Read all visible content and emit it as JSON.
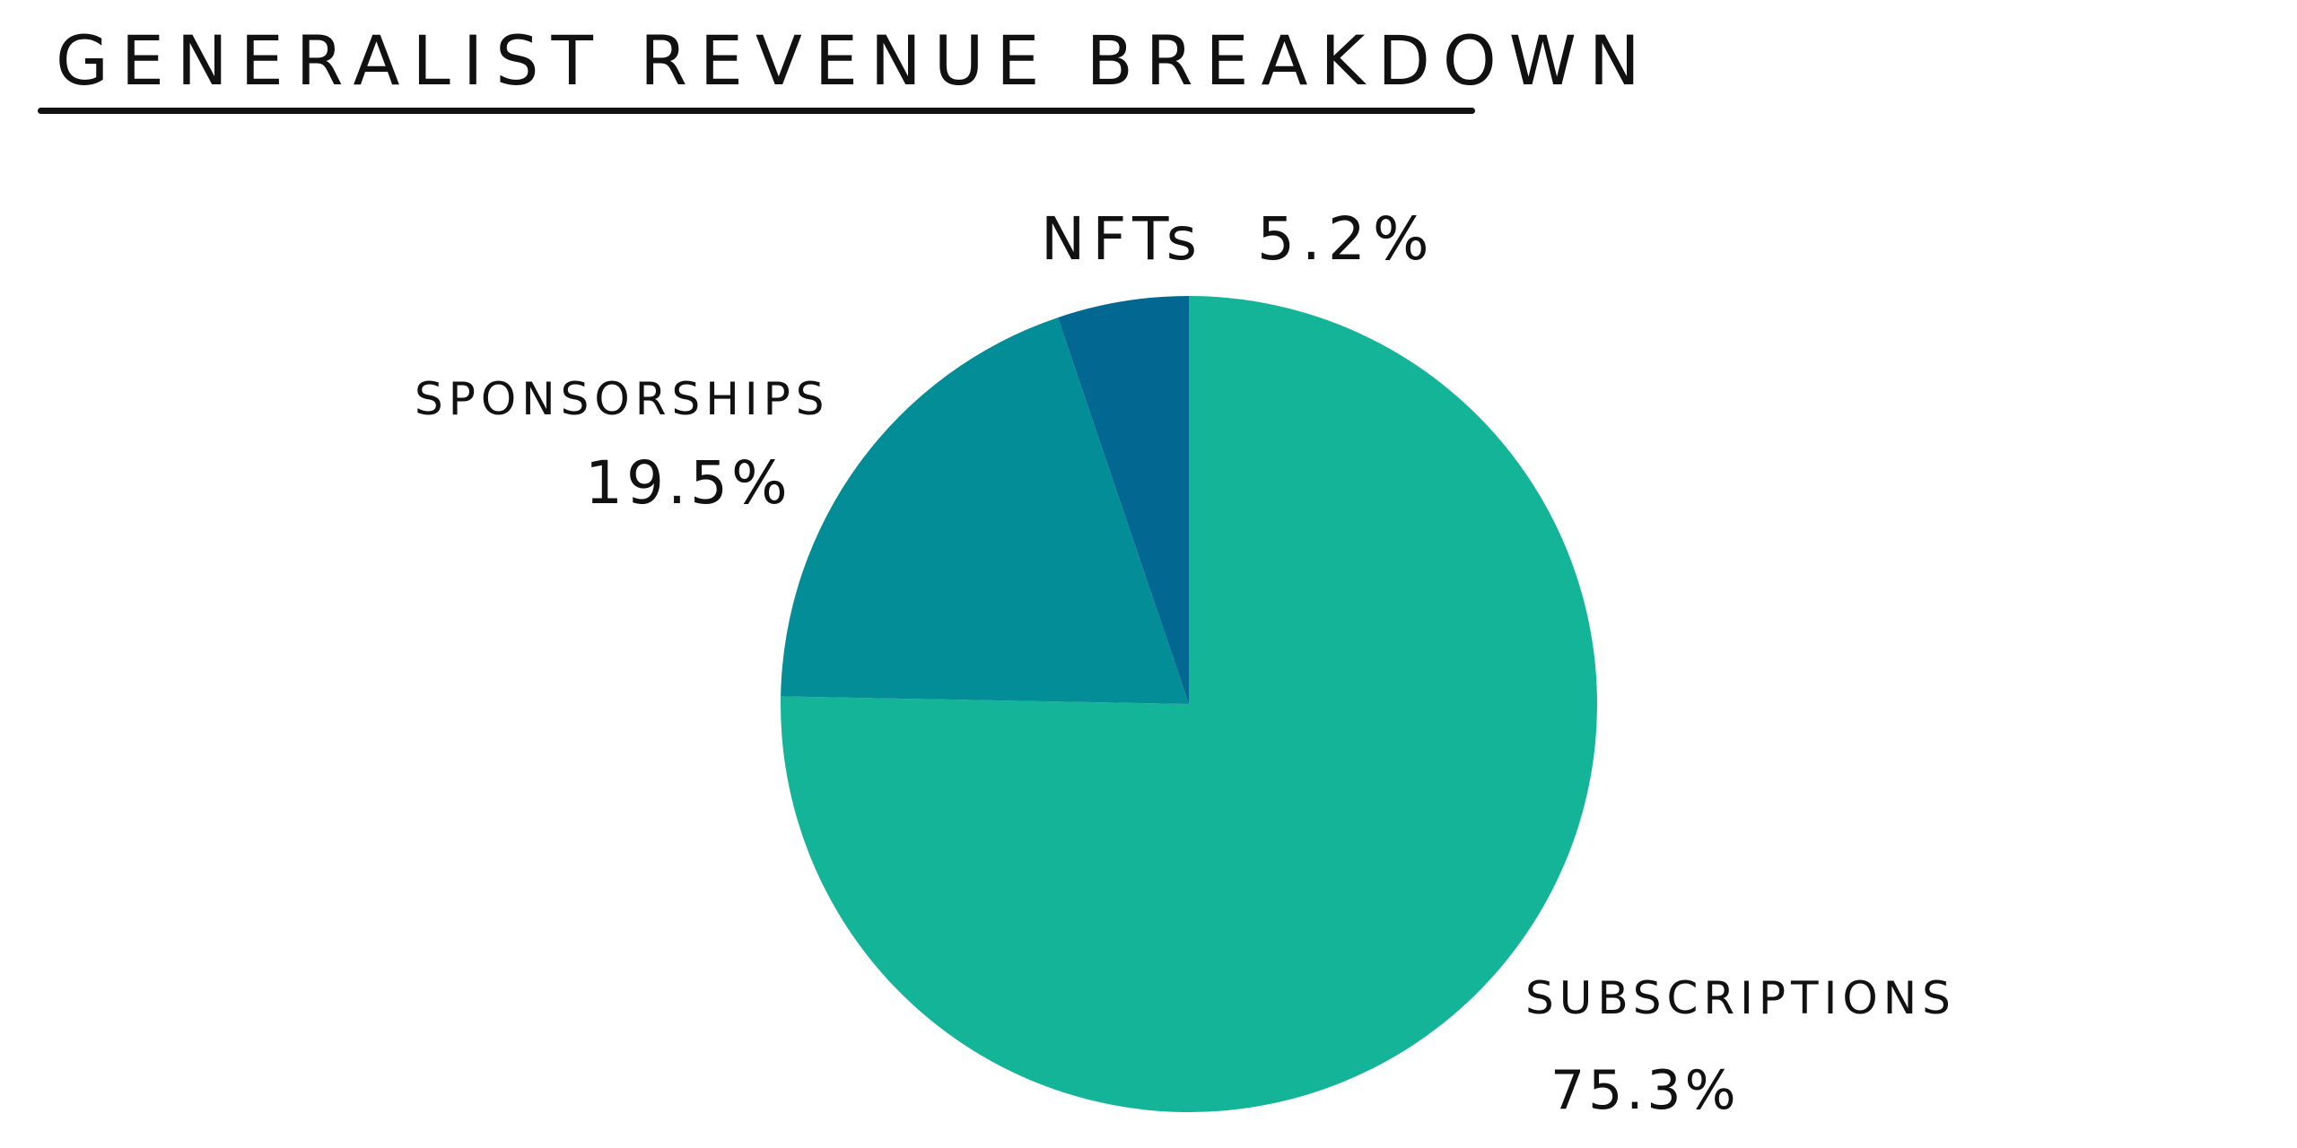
{
  "chart_data": {
    "type": "pie",
    "title": "Generalist Revenue Breakdown",
    "slices": [
      {
        "label": "SUBSCRIPTIONS",
        "value": 75.3,
        "value_label": "75.3%",
        "color": "#13b497"
      },
      {
        "label": "SPONSORSHIPS",
        "value": 19.5,
        "value_label": "19.5%",
        "color": "#038d96"
      },
      {
        "label": "NFTs",
        "value": 5.2,
        "value_label": "5.2%",
        "color": "#026891"
      }
    ],
    "start_angle": "12 o'clock",
    "direction": "clockwise",
    "legend": "none"
  }
}
